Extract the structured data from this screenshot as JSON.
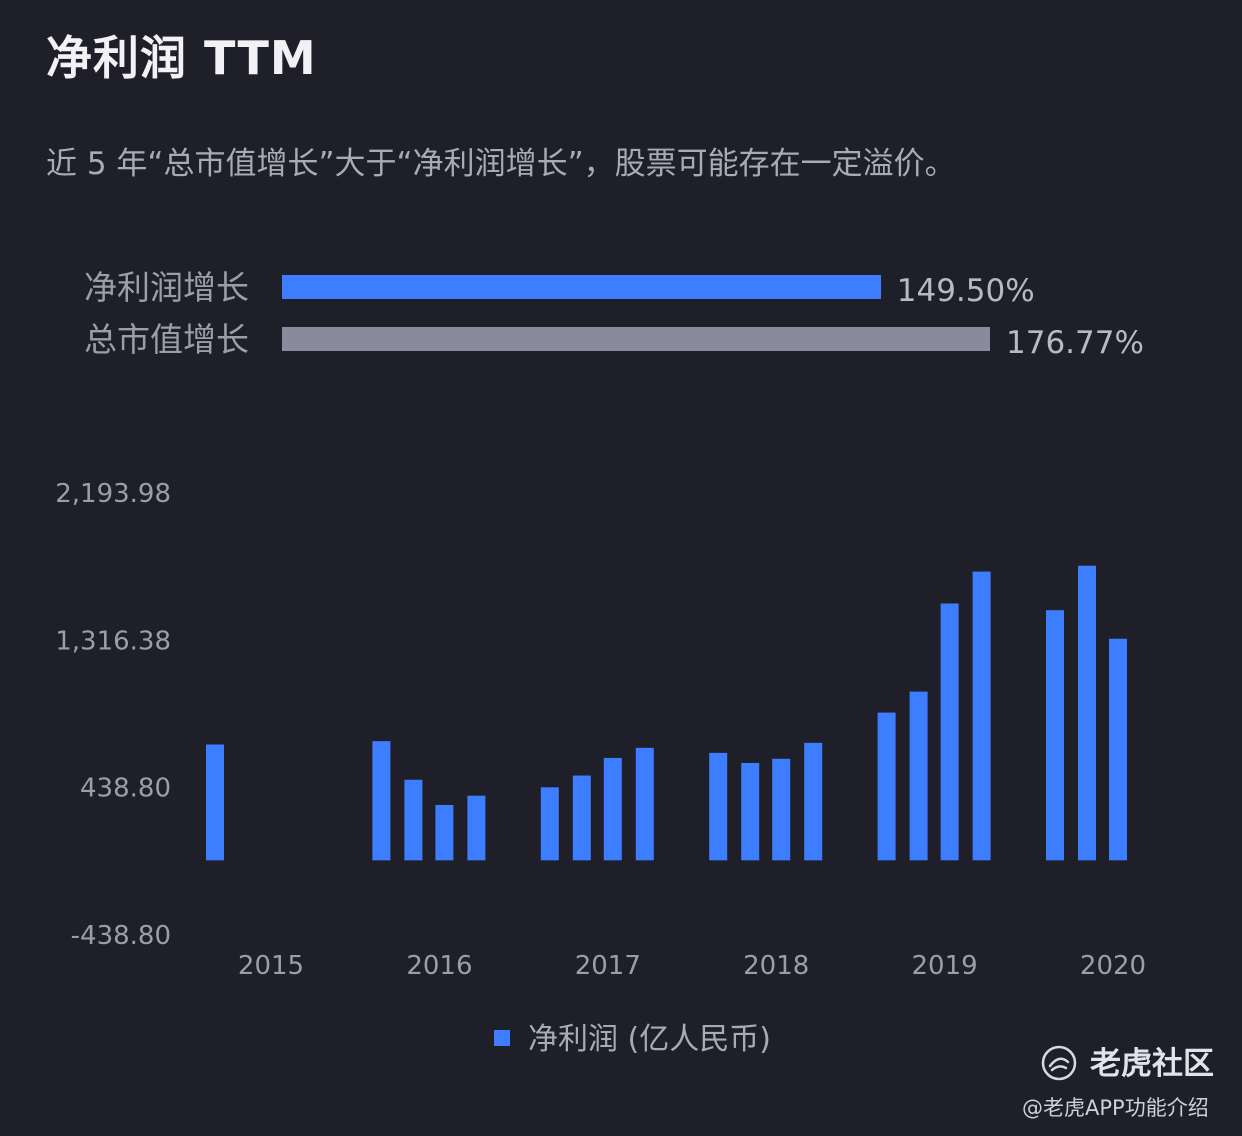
{
  "title": "净利润 TTM",
  "subtitle": "近 5 年“总市值增长”大于“净利润增长”，股票可能存在一定溢价。",
  "comparison": [
    {
      "label": "净利润增长",
      "value": 149.5,
      "value_text": "149.50%",
      "color": "#3d7dff"
    },
    {
      "label": "总市值增长",
      "value": 176.77,
      "value_text": "176.77%",
      "color": "#8a8a9c"
    }
  ],
  "chart_data": {
    "type": "bar",
    "y_ticks": [
      "2,193.98",
      "1,316.38",
      "438.80",
      "-438.80"
    ],
    "y_tick_values": [
      2193.98,
      1316.38,
      438.8,
      -438.8
    ],
    "x_tick_labels": [
      "2015",
      "2016",
      "2017",
      "2018",
      "2019",
      "2020"
    ],
    "ylim": [
      -438.8,
      2193.98
    ],
    "series": [
      {
        "name": "净利润 (亿人民币)",
        "color": "#3d7dff",
        "points": [
          {
            "year": "2015",
            "q": 4,
            "value": 690
          },
          {
            "year": "2016",
            "q": 1,
            "value": 710
          },
          {
            "year": "2016",
            "q": 2,
            "value": 480
          },
          {
            "year": "2016",
            "q": 3,
            "value": 330
          },
          {
            "year": "2016",
            "q": 4,
            "value": 385
          },
          {
            "year": "2017",
            "q": 1,
            "value": 435
          },
          {
            "year": "2017",
            "q": 2,
            "value": 505
          },
          {
            "year": "2017",
            "q": 3,
            "value": 610
          },
          {
            "year": "2017",
            "q": 4,
            "value": 670
          },
          {
            "year": "2018",
            "q": 1,
            "value": 640
          },
          {
            "year": "2018",
            "q": 2,
            "value": 580
          },
          {
            "year": "2018",
            "q": 3,
            "value": 605
          },
          {
            "year": "2018",
            "q": 4,
            "value": 700
          },
          {
            "year": "2019",
            "q": 1,
            "value": 880
          },
          {
            "year": "2019",
            "q": 2,
            "value": 1005
          },
          {
            "year": "2019",
            "q": 3,
            "value": 1530
          },
          {
            "year": "2019",
            "q": 4,
            "value": 1720
          },
          {
            "year": "2020",
            "q": 1,
            "value": 1490
          },
          {
            "year": "2020",
            "q": 2,
            "value": 1755
          },
          {
            "year": "2020",
            "q": 3,
            "value": 1320
          }
        ]
      }
    ],
    "grid": false,
    "legend_position": "bottom-center"
  },
  "legend": {
    "label": "净利润 (亿人民币)",
    "color": "#3d7dff"
  },
  "brand": {
    "name": "老虎社区",
    "icon": "tiger-logo-icon"
  },
  "watermark": "@老虎APP功能介绍"
}
